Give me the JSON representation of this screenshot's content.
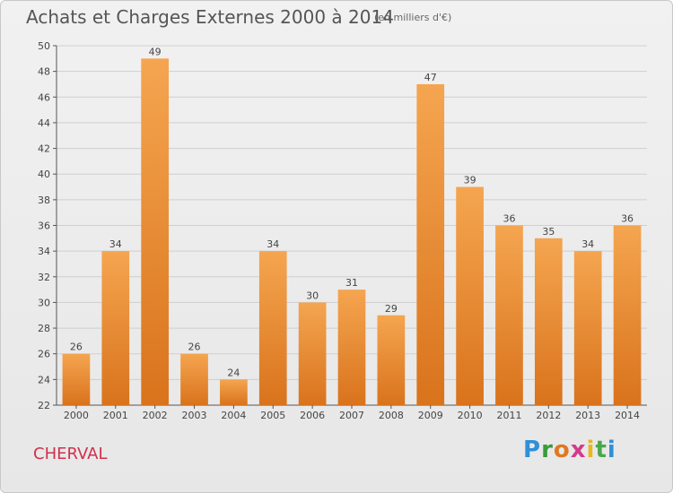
{
  "title": "Achats et Charges Externes 2000 à 2014",
  "unit": "(en milliers d'€)",
  "commune": "CHERVAL",
  "logo_text": "Proxiti",
  "colors": {
    "bar_light": "#f5a550",
    "bar_dark": "#d9731c",
    "grid": "#cfcfcf"
  },
  "chart_data": {
    "type": "bar",
    "title": "Achats et Charges Externes 2000 à 2014",
    "categories": [
      "2000",
      "2001",
      "2002",
      "2003",
      "2004",
      "2005",
      "2006",
      "2007",
      "2008",
      "2009",
      "2010",
      "2011",
      "2012",
      "2013",
      "2014"
    ],
    "values": [
      26,
      34,
      49,
      26,
      24,
      34,
      30,
      31,
      29,
      47,
      39,
      36,
      35,
      34,
      36
    ],
    "ylim": [
      22,
      50
    ],
    "yticks": [
      22,
      24,
      26,
      28,
      30,
      32,
      34,
      36,
      38,
      40,
      42,
      44,
      46,
      48,
      50
    ],
    "grid": true,
    "data_labels": true
  }
}
